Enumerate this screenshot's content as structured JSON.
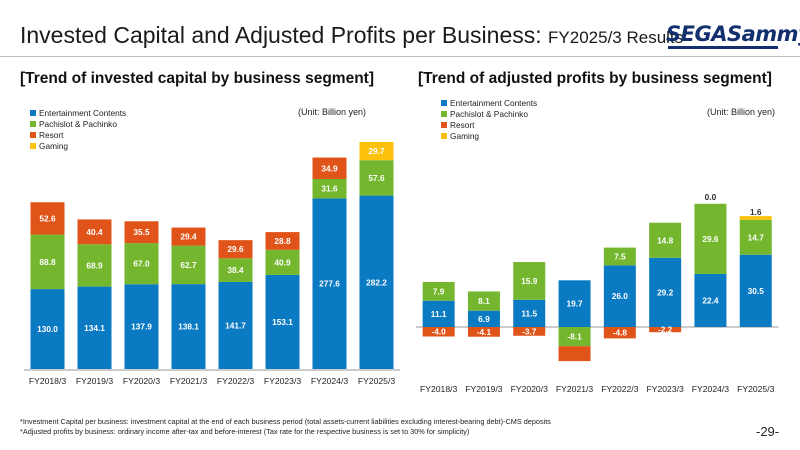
{
  "header": {
    "title_main": "Invested Capital and Adjusted Profits per Business:",
    "title_sub": "FY2025/3 Results",
    "logo_text": "SEGASammy"
  },
  "footnotes": [
    "*Investment Capital per business: investment capital at the end of each business period (total assets-current liabilities excluding interest-bearing debt)-CMS deposits",
    "*Adjusted profits by business: ordinary income after-tax and before-interest (Tax rate for the respective business is set to 30% for simplicity)"
  ],
  "page_number": "-29-",
  "colors": {
    "entertainment": "#0a7ac3",
    "pachislot": "#74b72e",
    "resort": "#e0541a",
    "gaming": "#fcc10d"
  },
  "chart_data": [
    {
      "type": "bar",
      "stacked": true,
      "heading": "[Trend of invested capital by business segment]",
      "unit": "(Unit: Billion yen)",
      "legend_position": "top-left",
      "grid": false,
      "categories": [
        "FY2018/3",
        "FY2019/3",
        "FY2020/3",
        "FY2021/3",
        "FY2022/3",
        "FY2023/3",
        "FY2024/3",
        "FY2025/3"
      ],
      "series": [
        {
          "name": "Entertainment Contents",
          "color_key": "entertainment",
          "values": [
            130.0,
            134.1,
            137.9,
            138.1,
            141.7,
            153.1,
            277.6,
            282.2
          ],
          "labels": [
            "130.0",
            "134.1",
            "137.9",
            "138.1",
            "141.7",
            "153.1",
            "277.6",
            "282.2"
          ]
        },
        {
          "name": "Pachislot & Pachinko",
          "color_key": "pachislot",
          "values": [
            88.8,
            68.9,
            67.0,
            62.7,
            38.4,
            40.9,
            31.6,
            57.6
          ],
          "labels": [
            "88.8",
            "68.9",
            "67.0",
            "62.7",
            "38.4",
            "40.9",
            "31.6",
            "57.6"
          ]
        },
        {
          "name": "Resort",
          "color_key": "resort",
          "values": [
            52.6,
            40.4,
            35.5,
            29.4,
            29.6,
            28.8,
            34.9,
            null
          ],
          "labels": [
            "52.6",
            "40.4",
            "35.5",
            "29.4",
            "29.6",
            "28.8",
            "34.9",
            ""
          ]
        },
        {
          "name": "Gaming",
          "color_key": "gaming",
          "values": [
            null,
            null,
            null,
            null,
            null,
            null,
            null,
            29.7
          ],
          "labels": [
            "",
            "",
            "",
            "",
            "",
            "",
            "",
            "29.7"
          ]
        }
      ],
      "ylim": [
        0,
        400
      ]
    },
    {
      "type": "bar",
      "stacked": true,
      "heading": "[Trend of adjusted profits by business segment]",
      "unit": "(Unit: Billion yen)",
      "legend_position": "top-left",
      "grid": false,
      "categories": [
        "FY2018/3",
        "FY2019/3",
        "FY2020/3",
        "FY2021/3",
        "FY2022/3",
        "FY2023/3",
        "FY2024/3",
        "FY2025/3"
      ],
      "series": [
        {
          "name": "Entertainment Contents",
          "color_key": "entertainment",
          "values": [
            11.1,
            6.9,
            11.5,
            19.7,
            26.0,
            29.2,
            22.4,
            30.5
          ],
          "labels": [
            "11.1",
            "6.9",
            "11.5",
            "19.7",
            "26.0",
            "29.2",
            "22.4",
            "30.5"
          ]
        },
        {
          "name": "Pachislot & Pachinko",
          "color_key": "pachislot",
          "values": [
            7.9,
            8.1,
            15.9,
            -8.1,
            7.5,
            14.8,
            29.6,
            14.7
          ],
          "labels": [
            "7.9",
            "8.1",
            "15.9",
            "-8.1",
            "7.5",
            "14.8",
            "29.6",
            "14.7"
          ]
        },
        {
          "name": "Resort",
          "color_key": "resort",
          "values": [
            -4.0,
            -4.1,
            -3.7,
            -6.3,
            -4.8,
            -2.2,
            0.0,
            null
          ],
          "labels": [
            "-4.0",
            "-4.1",
            "-3.7",
            "-6.3",
            "-4.8",
            "-2.2",
            "0.0",
            ""
          ]
        },
        {
          "name": "Gaming",
          "color_key": "gaming",
          "values": [
            null,
            null,
            null,
            null,
            null,
            null,
            null,
            1.6
          ],
          "labels": [
            "",
            "",
            "",
            "",
            "",
            "",
            "",
            "1.6"
          ]
        }
      ],
      "ylim": [
        -15,
        60
      ]
    }
  ]
}
